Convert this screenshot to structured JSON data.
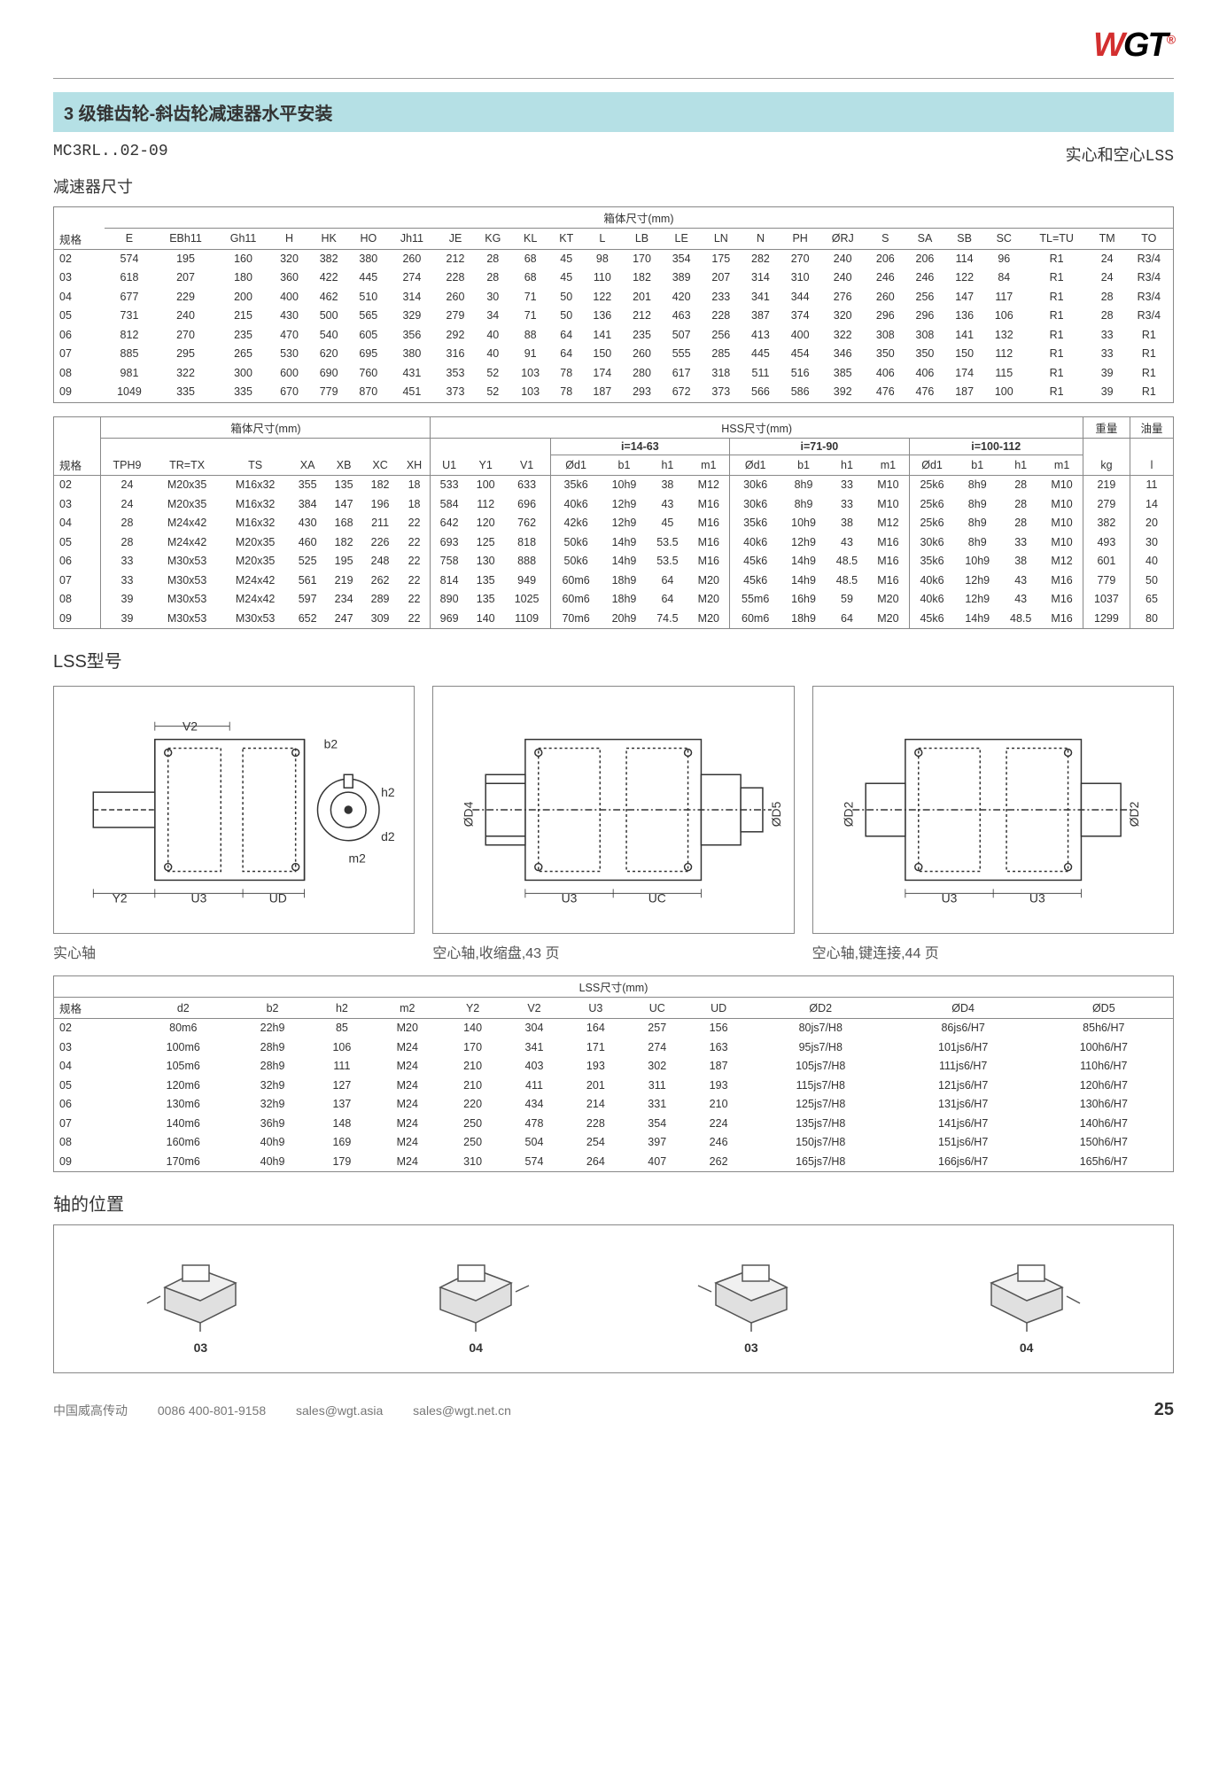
{
  "logo": {
    "w": "W",
    "gt": "GT",
    "sup": "®"
  },
  "title": "3 级锥齿轮-斜齿轮减速器水平安装",
  "model": "MC3RL..02-09",
  "model_right": "实心和空心LSS",
  "subtitle": "减速器尺寸",
  "table1": {
    "header_top": "箱体尺寸(mm)",
    "cols": [
      "规格",
      "E",
      "EBh11",
      "Gh11",
      "H",
      "HK",
      "HO",
      "Jh11",
      "JE",
      "KG",
      "KL",
      "KT",
      "L",
      "LB",
      "LE",
      "LN",
      "N",
      "PH",
      "ØRJ",
      "S",
      "SA",
      "SB",
      "SC",
      "TL=TU",
      "TM",
      "TO"
    ],
    "rows": [
      [
        "02",
        "574",
        "195",
        "160",
        "320",
        "382",
        "380",
        "260",
        "212",
        "28",
        "68",
        "45",
        "98",
        "170",
        "354",
        "175",
        "282",
        "270",
        "240",
        "206",
        "206",
        "114",
        "96",
        "R1",
        "24",
        "R3/4"
      ],
      [
        "03",
        "618",
        "207",
        "180",
        "360",
        "422",
        "445",
        "274",
        "228",
        "28",
        "68",
        "45",
        "110",
        "182",
        "389",
        "207",
        "314",
        "310",
        "240",
        "246",
        "246",
        "122",
        "84",
        "R1",
        "24",
        "R3/4"
      ],
      [
        "04",
        "677",
        "229",
        "200",
        "400",
        "462",
        "510",
        "314",
        "260",
        "30",
        "71",
        "50",
        "122",
        "201",
        "420",
        "233",
        "341",
        "344",
        "276",
        "260",
        "256",
        "147",
        "117",
        "R1",
        "28",
        "R3/4"
      ],
      [
        "05",
        "731",
        "240",
        "215",
        "430",
        "500",
        "565",
        "329",
        "279",
        "34",
        "71",
        "50",
        "136",
        "212",
        "463",
        "228",
        "387",
        "374",
        "320",
        "296",
        "296",
        "136",
        "106",
        "R1",
        "28",
        "R3/4"
      ],
      [
        "06",
        "812",
        "270",
        "235",
        "470",
        "540",
        "605",
        "356",
        "292",
        "40",
        "88",
        "64",
        "141",
        "235",
        "507",
        "256",
        "413",
        "400",
        "322",
        "308",
        "308",
        "141",
        "132",
        "R1",
        "33",
        "R1"
      ],
      [
        "07",
        "885",
        "295",
        "265",
        "530",
        "620",
        "695",
        "380",
        "316",
        "40",
        "91",
        "64",
        "150",
        "260",
        "555",
        "285",
        "445",
        "454",
        "346",
        "350",
        "350",
        "150",
        "112",
        "R1",
        "33",
        "R1"
      ],
      [
        "08",
        "981",
        "322",
        "300",
        "600",
        "690",
        "760",
        "431",
        "353",
        "52",
        "103",
        "78",
        "174",
        "280",
        "617",
        "318",
        "511",
        "516",
        "385",
        "406",
        "406",
        "174",
        "115",
        "R1",
        "39",
        "R1"
      ],
      [
        "09",
        "1049",
        "335",
        "335",
        "670",
        "779",
        "870",
        "451",
        "373",
        "52",
        "103",
        "78",
        "187",
        "293",
        "672",
        "373",
        "566",
        "586",
        "392",
        "476",
        "476",
        "187",
        "100",
        "R1",
        "39",
        "R1"
      ]
    ]
  },
  "table2": {
    "header_left": "箱体尺寸(mm)",
    "header_right": "HSS尺寸(mm)",
    "header_weight": "重量",
    "header_oil": "油量",
    "subheaders": [
      "i=14-63",
      "i=71-90",
      "i=100-112"
    ],
    "cols": [
      "规格",
      "TPH9",
      "TR=TX",
      "TS",
      "XA",
      "XB",
      "XC",
      "XH",
      "U1",
      "Y1",
      "V1",
      "Ød1",
      "b1",
      "h1",
      "m1",
      "Ød1",
      "b1",
      "h1",
      "m1",
      "Ød1",
      "b1",
      "h1",
      "m1",
      "kg",
      "l"
    ],
    "rows": [
      [
        "02",
        "24",
        "M20x35",
        "M16x32",
        "355",
        "135",
        "182",
        "18",
        "533",
        "100",
        "633",
        "35k6",
        "10h9",
        "38",
        "M12",
        "30k6",
        "8h9",
        "33",
        "M10",
        "25k6",
        "8h9",
        "28",
        "M10",
        "219",
        "11"
      ],
      [
        "03",
        "24",
        "M20x35",
        "M16x32",
        "384",
        "147",
        "196",
        "18",
        "584",
        "112",
        "696",
        "40k6",
        "12h9",
        "43",
        "M16",
        "30k6",
        "8h9",
        "33",
        "M10",
        "25k6",
        "8h9",
        "28",
        "M10",
        "279",
        "14"
      ],
      [
        "04",
        "28",
        "M24x42",
        "M16x32",
        "430",
        "168",
        "211",
        "22",
        "642",
        "120",
        "762",
        "42k6",
        "12h9",
        "45",
        "M16",
        "35k6",
        "10h9",
        "38",
        "M12",
        "25k6",
        "8h9",
        "28",
        "M10",
        "382",
        "20"
      ],
      [
        "05",
        "28",
        "M24x42",
        "M20x35",
        "460",
        "182",
        "226",
        "22",
        "693",
        "125",
        "818",
        "50k6",
        "14h9",
        "53.5",
        "M16",
        "40k6",
        "12h9",
        "43",
        "M16",
        "30k6",
        "8h9",
        "33",
        "M10",
        "493",
        "30"
      ],
      [
        "06",
        "33",
        "M30x53",
        "M20x35",
        "525",
        "195",
        "248",
        "22",
        "758",
        "130",
        "888",
        "50k6",
        "14h9",
        "53.5",
        "M16",
        "45k6",
        "14h9",
        "48.5",
        "M16",
        "35k6",
        "10h9",
        "38",
        "M12",
        "601",
        "40"
      ],
      [
        "07",
        "33",
        "M30x53",
        "M24x42",
        "561",
        "219",
        "262",
        "22",
        "814",
        "135",
        "949",
        "60m6",
        "18h9",
        "64",
        "M20",
        "45k6",
        "14h9",
        "48.5",
        "M16",
        "40k6",
        "12h9",
        "43",
        "M16",
        "779",
        "50"
      ],
      [
        "08",
        "39",
        "M30x53",
        "M24x42",
        "597",
        "234",
        "289",
        "22",
        "890",
        "135",
        "1025",
        "60m6",
        "18h9",
        "64",
        "M20",
        "55m6",
        "16h9",
        "59",
        "M20",
        "40k6",
        "12h9",
        "43",
        "M16",
        "1037",
        "65"
      ],
      [
        "09",
        "39",
        "M30x53",
        "M30x53",
        "652",
        "247",
        "309",
        "22",
        "969",
        "140",
        "1109",
        "70m6",
        "20h9",
        "74.5",
        "M20",
        "60m6",
        "18h9",
        "64",
        "M20",
        "45k6",
        "14h9",
        "48.5",
        "M16",
        "1299",
        "80"
      ]
    ]
  },
  "lss_section": "LSS型号",
  "diagram_captions": [
    "实心轴",
    "空心轴,收缩盘,43 页",
    "空心轴,键连接,44 页"
  ],
  "diagram_labels": {
    "d1": [
      "V2",
      "b2",
      "h2",
      "d2",
      "m2",
      "Y2",
      "U3",
      "UD"
    ],
    "d2": [
      "ØD4",
      "ØD5",
      "U3",
      "UC"
    ],
    "d3": [
      "ØD2",
      "ØD2",
      "U3",
      "U3"
    ]
  },
  "table3": {
    "header": "LSS尺寸(mm)",
    "cols": [
      "规格",
      "d2",
      "b2",
      "h2",
      "m2",
      "Y2",
      "V2",
      "U3",
      "UC",
      "UD",
      "ØD2",
      "ØD4",
      "ØD5"
    ],
    "rows": [
      [
        "02",
        "80m6",
        "22h9",
        "85",
        "M20",
        "140",
        "304",
        "164",
        "257",
        "156",
        "80js7/H8",
        "86js6/H7",
        "85h6/H7"
      ],
      [
        "03",
        "100m6",
        "28h9",
        "106",
        "M24",
        "170",
        "341",
        "171",
        "274",
        "163",
        "95js7/H8",
        "101js6/H7",
        "100h6/H7"
      ],
      [
        "04",
        "105m6",
        "28h9",
        "111",
        "M24",
        "210",
        "403",
        "193",
        "302",
        "187",
        "105js7/H8",
        "111js6/H7",
        "110h6/H7"
      ],
      [
        "05",
        "120m6",
        "32h9",
        "127",
        "M24",
        "210",
        "411",
        "201",
        "311",
        "193",
        "115js7/H8",
        "121js6/H7",
        "120h6/H7"
      ],
      [
        "06",
        "130m6",
        "32h9",
        "137",
        "M24",
        "220",
        "434",
        "214",
        "331",
        "210",
        "125js7/H8",
        "131js6/H7",
        "130h6/H7"
      ],
      [
        "07",
        "140m6",
        "36h9",
        "148",
        "M24",
        "250",
        "478",
        "228",
        "354",
        "224",
        "135js7/H8",
        "141js6/H7",
        "140h6/H7"
      ],
      [
        "08",
        "160m6",
        "40h9",
        "169",
        "M24",
        "250",
        "504",
        "254",
        "397",
        "246",
        "150js7/H8",
        "151js6/H7",
        "150h6/H7"
      ],
      [
        "09",
        "170m6",
        "40h9",
        "179",
        "M24",
        "310",
        "574",
        "264",
        "407",
        "262",
        "165js7/H8",
        "166js6/H7",
        "165h6/H7"
      ]
    ]
  },
  "shaft_section": "轴的位置",
  "shaft_labels": [
    "03",
    "04",
    "03",
    "04"
  ],
  "footer": {
    "company": "中国威高传动",
    "phone": "0086 400-801-9158",
    "email1": "sales@wgt.asia",
    "email2": "sales@wgt.net.cn",
    "page": "25"
  },
  "colors": {
    "titlebar_bg": "#b5e0e5",
    "logo_red": "#d32f2f",
    "border": "#888888",
    "text": "#333333"
  }
}
